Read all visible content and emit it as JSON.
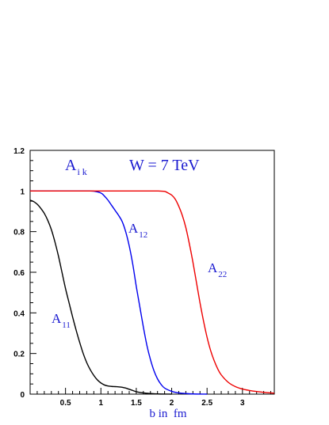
{
  "chart_data": {
    "type": "line",
    "title": "",
    "xlabel": "b in  fm",
    "ylabel": "",
    "xlim": [
      0,
      3.45
    ],
    "ylim": [
      0,
      1.2
    ],
    "xticks": [
      {
        "value": 0.5,
        "label": "0.5"
      },
      {
        "value": 1,
        "label": "1"
      },
      {
        "value": 1.5,
        "label": "1.5"
      },
      {
        "value": 2,
        "label": "2"
      },
      {
        "value": 2.5,
        "label": "2.5"
      },
      {
        "value": 3,
        "label": "3"
      }
    ],
    "yticks": [
      {
        "value": 0,
        "label": "0"
      },
      {
        "value": 0.2,
        "label": "0.2"
      },
      {
        "value": 0.4,
        "label": "0.4"
      },
      {
        "value": 0.6,
        "label": "0.6"
      },
      {
        "value": 0.8,
        "label": "0.8"
      },
      {
        "value": 1,
        "label": "1"
      },
      {
        "value": 1.2,
        "label": "1.2"
      }
    ],
    "annotations": {
      "panel_label_main": "A",
      "panel_label_sub": "i k",
      "energy_label": "W = 7 TeV"
    },
    "series": [
      {
        "name": "A11",
        "label_main": "A",
        "label_sub": "11",
        "color": "#000000",
        "points": [
          [
            0.0,
            0.955
          ],
          [
            0.05,
            0.948
          ],
          [
            0.1,
            0.935
          ],
          [
            0.15,
            0.915
          ],
          [
            0.2,
            0.89
          ],
          [
            0.25,
            0.855
          ],
          [
            0.3,
            0.81
          ],
          [
            0.35,
            0.75
          ],
          [
            0.4,
            0.68
          ],
          [
            0.45,
            0.6
          ],
          [
            0.5,
            0.52
          ],
          [
            0.55,
            0.45
          ],
          [
            0.6,
            0.38
          ],
          [
            0.65,
            0.315
          ],
          [
            0.7,
            0.255
          ],
          [
            0.75,
            0.2
          ],
          [
            0.8,
            0.155
          ],
          [
            0.85,
            0.12
          ],
          [
            0.9,
            0.092
          ],
          [
            0.95,
            0.07
          ],
          [
            1.0,
            0.055
          ],
          [
            1.05,
            0.045
          ],
          [
            1.1,
            0.04
          ],
          [
            1.15,
            0.038
          ],
          [
            1.2,
            0.037
          ],
          [
            1.25,
            0.036
          ],
          [
            1.3,
            0.034
          ],
          [
            1.35,
            0.03
          ],
          [
            1.4,
            0.024
          ],
          [
            1.45,
            0.018
          ],
          [
            1.5,
            0.012
          ],
          [
            1.6,
            0.006
          ],
          [
            1.7,
            0.003
          ],
          [
            1.8,
            0.001
          ],
          [
            2.0,
            0.0
          ]
        ]
      },
      {
        "name": "A12",
        "label_main": "A",
        "label_sub": "12",
        "color": "#0000ee",
        "points": [
          [
            0.0,
            1.0
          ],
          [
            0.6,
            1.0
          ],
          [
            0.8,
            1.0
          ],
          [
            0.9,
            0.999
          ],
          [
            1.0,
            0.99
          ],
          [
            1.05,
            0.975
          ],
          [
            1.1,
            0.955
          ],
          [
            1.15,
            0.93
          ],
          [
            1.2,
            0.905
          ],
          [
            1.25,
            0.88
          ],
          [
            1.3,
            0.85
          ],
          [
            1.35,
            0.8
          ],
          [
            1.4,
            0.73
          ],
          [
            1.45,
            0.64
          ],
          [
            1.5,
            0.53
          ],
          [
            1.55,
            0.43
          ],
          [
            1.6,
            0.33
          ],
          [
            1.65,
            0.24
          ],
          [
            1.7,
            0.17
          ],
          [
            1.75,
            0.115
          ],
          [
            1.8,
            0.075
          ],
          [
            1.85,
            0.048
          ],
          [
            1.9,
            0.03
          ],
          [
            2.0,
            0.014
          ],
          [
            2.1,
            0.006
          ],
          [
            2.2,
            0.003
          ],
          [
            2.3,
            0.001
          ],
          [
            2.5,
            0.0
          ]
        ]
      },
      {
        "name": "A22",
        "label_main": "A",
        "label_sub": "22",
        "color": "#ee0000",
        "points": [
          [
            0.0,
            1.0
          ],
          [
            1.5,
            1.0
          ],
          [
            1.8,
            1.0
          ],
          [
            1.9,
            0.998
          ],
          [
            1.95,
            0.99
          ],
          [
            2.0,
            0.98
          ],
          [
            2.05,
            0.96
          ],
          [
            2.1,
            0.925
          ],
          [
            2.15,
            0.88
          ],
          [
            2.2,
            0.82
          ],
          [
            2.25,
            0.74
          ],
          [
            2.3,
            0.65
          ],
          [
            2.35,
            0.55
          ],
          [
            2.4,
            0.45
          ],
          [
            2.45,
            0.36
          ],
          [
            2.5,
            0.28
          ],
          [
            2.55,
            0.215
          ],
          [
            2.6,
            0.165
          ],
          [
            2.65,
            0.125
          ],
          [
            2.7,
            0.095
          ],
          [
            2.8,
            0.058
          ],
          [
            2.9,
            0.037
          ],
          [
            3.0,
            0.025
          ],
          [
            3.1,
            0.018
          ],
          [
            3.2,
            0.013
          ],
          [
            3.3,
            0.009
          ],
          [
            3.4,
            0.006
          ],
          [
            3.45,
            0.005
          ]
        ]
      }
    ],
    "grid": false,
    "legend": "none"
  }
}
